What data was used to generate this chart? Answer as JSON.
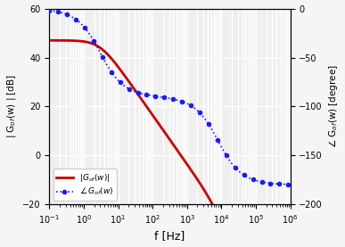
{
  "xlabel": "f [Hz]",
  "ylabel_left": "| G$_{of}$(w) | [dB]",
  "ylabel_right": "$\\angle$ G$_{of}$(w) [degree]",
  "ylim_left": [
    -20,
    60
  ],
  "ylim_right": [
    -200,
    0
  ],
  "xlim": [
    0.1,
    1000000.0
  ],
  "freq_start": 0.1,
  "freq_stop": 1000000.0,
  "mag_dc_dB": 47.0,
  "pole1_Hz": 3.0,
  "pole2_Hz": 8000.0,
  "line_color_mag": "#cc0000",
  "dot_color_phase": "#1a1aff",
  "bg_color": "#efefef",
  "grid_color": "#ffffff",
  "yticks_left": [
    -20,
    0,
    20,
    40,
    60
  ],
  "yticks_right": [
    -200,
    -150,
    -100,
    -50,
    0
  ],
  "xtick_values": [
    0.1,
    1,
    10,
    100,
    1000,
    10000,
    100000,
    1000000
  ],
  "dot_markevery": 22,
  "dot_markersize": 3.0,
  "linewidth_mag": 2.0,
  "legend_fontsize": 6.5,
  "axis_label_fontsize": 7.5,
  "tick_fontsize": 7
}
